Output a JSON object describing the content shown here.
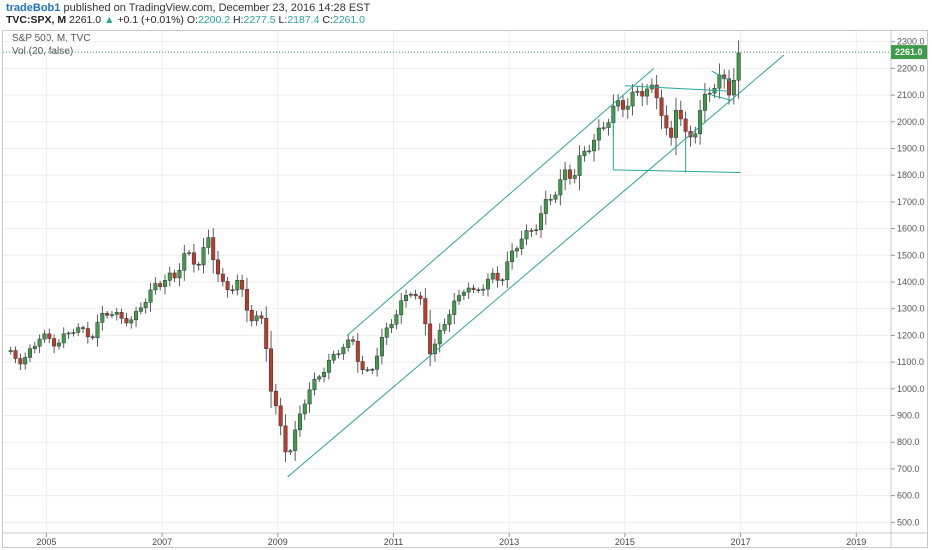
{
  "header": {
    "user": "tradeBob1",
    "published": "published on TradingView.com, December 23, 2016 14:28 EST",
    "symbol": "TVC:SPX, M",
    "last": "2261.0",
    "arrow": "▲",
    "change": "+0.1 (+0.01%)",
    "open_label": "O:",
    "open": "2200.2",
    "high_label": "H:",
    "high": "2277.5",
    "low_label": "L:",
    "low": "2187.4",
    "close_label": "C:",
    "close": "2261.0"
  },
  "legend": {
    "title": "S&P 500, M, TVC",
    "volume": "Vol (20, false)"
  },
  "colors": {
    "up": "#3d9c4a",
    "down": "#c0392b",
    "channel": "#26a69a",
    "price_box": "#3d9c4a"
  },
  "chart_data": {
    "type": "candlestick",
    "title": "S&P 500, M, TVC",
    "xlabel": "",
    "ylabel": "",
    "ylim": [
      460,
      2340
    ],
    "xlim": [
      2004.25,
      2019.6
    ],
    "y_ticks": [
      500,
      600,
      700,
      800,
      900,
      1000,
      1100,
      1200,
      1300,
      1400,
      1500,
      1600,
      1700,
      1800,
      1900,
      2000,
      2100,
      2200,
      2300
    ],
    "y_tick_labels": [
      "500.0",
      "600.0",
      "700.0",
      "800.0",
      "900.0",
      "1000.0",
      "1100.0",
      "1200.0",
      "1300.0",
      "1400.0",
      "1500.0",
      "1600.0",
      "1700.0",
      "1800.0",
      "1900.0",
      "2000.0",
      "2100.0",
      "2200.0",
      "2300.0"
    ],
    "x_ticks": [
      2005,
      2007,
      2009,
      2011,
      2013,
      2015,
      2017,
      2019
    ],
    "x_tick_labels": [
      "2005",
      "2007",
      "2009",
      "2011",
      "2013",
      "2015",
      "2017",
      "2019"
    ],
    "last_price": 2261.0,
    "last_price_label": "2261.0",
    "anchors": [
      [
        2004.3,
        1130
      ],
      [
        2004.6,
        1110
      ],
      [
        2004.9,
        1190
      ],
      [
        2005.2,
        1180
      ],
      [
        2005.5,
        1220
      ],
      [
        2005.8,
        1210
      ],
      [
        2006.0,
        1280
      ],
      [
        2006.4,
        1270
      ],
      [
        2006.5,
        1250
      ],
      [
        2006.9,
        1400
      ],
      [
        2007.1,
        1420
      ],
      [
        2007.2,
        1390
      ],
      [
        2007.4,
        1520
      ],
      [
        2007.6,
        1470
      ],
      [
        2007.8,
        1540
      ],
      [
        2007.9,
        1480
      ],
      [
        2008.1,
        1370
      ],
      [
        2008.3,
        1400
      ],
      [
        2008.5,
        1270
      ],
      [
        2008.7,
        1280
      ],
      [
        2008.8,
        1160
      ],
      [
        2008.9,
        960
      ],
      [
        2009.0,
        900
      ],
      [
        2009.17,
        740
      ],
      [
        2009.4,
        920
      ],
      [
        2009.7,
        1050
      ],
      [
        2009.9,
        1110
      ],
      [
        2010.3,
        1180
      ],
      [
        2010.45,
        1080
      ],
      [
        2010.6,
        1050
      ],
      [
        2010.8,
        1180
      ],
      [
        2011.0,
        1280
      ],
      [
        2011.3,
        1360
      ],
      [
        2011.5,
        1320
      ],
      [
        2011.65,
        1130
      ],
      [
        2011.8,
        1200
      ],
      [
        2012.0,
        1300
      ],
      [
        2012.25,
        1400
      ],
      [
        2012.4,
        1340
      ],
      [
        2012.7,
        1430
      ],
      [
        2012.9,
        1420
      ],
      [
        2013.2,
        1570
      ],
      [
        2013.5,
        1620
      ],
      [
        2013.8,
        1750
      ],
      [
        2014.0,
        1830
      ],
      [
        2014.1,
        1780
      ],
      [
        2014.4,
        1930
      ],
      [
        2014.7,
        2000
      ],
      [
        2014.9,
        2060
      ],
      [
        2015.1,
        2100
      ],
      [
        2015.4,
        2110
      ],
      [
        2015.6,
        2100
      ],
      [
        2015.7,
        1990
      ],
      [
        2015.8,
        1920
      ],
      [
        2015.9,
        2070
      ],
      [
        2016.05,
        1940
      ],
      [
        2016.15,
        1940
      ],
      [
        2016.3,
        2060
      ],
      [
        2016.5,
        2100
      ],
      [
        2016.6,
        2170
      ],
      [
        2016.8,
        2130
      ],
      [
        2016.9,
        2200
      ],
      [
        2016.97,
        2261
      ]
    ],
    "channel_lines": [
      {
        "name": "upper",
        "points": [
          [
            2010.2,
            1200
          ],
          [
            2015.5,
            2200
          ]
        ]
      },
      {
        "name": "lower",
        "points": [
          [
            2009.17,
            670
          ],
          [
            2017.75,
            2250
          ]
        ]
      },
      {
        "name": "range-top",
        "points": [
          [
            2015.0,
            2135
          ],
          [
            2016.8,
            2115
          ]
        ]
      },
      {
        "name": "range-bottom",
        "points": [
          [
            2014.8,
            1820
          ],
          [
            2017.0,
            1810
          ]
        ]
      },
      {
        "name": "range-left",
        "points": [
          [
            2014.8,
            1820
          ],
          [
            2014.8,
            2030
          ]
        ]
      },
      {
        "name": "range-right",
        "points": [
          [
            2016.05,
            1810
          ],
          [
            2016.05,
            1940
          ]
        ]
      },
      {
        "name": "wedge-top",
        "points": [
          [
            2016.5,
            2190
          ],
          [
            2016.85,
            2150
          ]
        ]
      },
      {
        "name": "wedge-bottom",
        "points": [
          [
            2016.5,
            2100
          ],
          [
            2016.85,
            2080
          ]
        ]
      }
    ]
  }
}
